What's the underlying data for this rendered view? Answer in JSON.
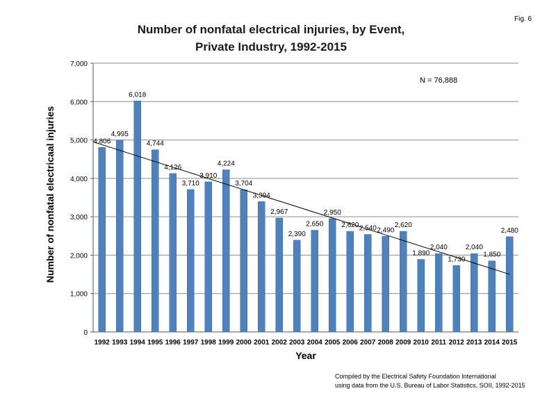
{
  "fig_label": "Fig. 6",
  "annotation": "N = 76,888",
  "credit": {
    "line1": "Compiled by the Electrical Safety Foundation International",
    "line2": "using data from the U.S. Bureau of Labor Statistics, SOII, 1992-2015"
  },
  "colors": {
    "bar": "#4f81bd",
    "bar_edge": "#3a6aa6",
    "grid": "#8c8c8c",
    "trend": "#000000"
  },
  "chart_data": {
    "type": "bar",
    "title_line1": "Number of nonfatal electrical injuries, by Event,",
    "title_line2": "Private Industry, 1992-2015",
    "xlabel": "Year",
    "ylabel": "Number of nonfatal electricaal injuries",
    "categories": [
      "1992",
      "1993",
      "1994",
      "1995",
      "1996",
      "1997",
      "1998",
      "1999",
      "2000",
      "2001",
      "2002",
      "2003",
      "2004",
      "2005",
      "2006",
      "2007",
      "2008",
      "2009",
      "2010",
      "2011",
      "2012",
      "2013",
      "2014",
      "2015"
    ],
    "values": [
      4806,
      4995,
      6018,
      4744,
      4126,
      3710,
      3910,
      4224,
      3704,
      3394,
      2967,
      2390,
      2650,
      2950,
      2620,
      2540,
      2490,
      2620,
      1890,
      2040,
      1730,
      2040,
      1850,
      2480
    ],
    "value_labels": [
      "4,806",
      "4,995",
      "6,018",
      "4,744",
      "4,126",
      "3,710",
      "3,910",
      "4,224",
      "3,704",
      "3,394",
      "2,967",
      "2,390",
      "2,650",
      "2,950",
      "2,620",
      "2,540",
      "2,490",
      "2,620",
      "1,890",
      "2,040",
      "1,730",
      "2,040",
      "1,850",
      "2,480"
    ],
    "ylim": [
      0,
      7000
    ],
    "yticks": [
      0,
      1000,
      2000,
      3000,
      4000,
      5000,
      6000,
      7000
    ],
    "ytick_labels": [
      "0",
      "1,000",
      "2,000",
      "3,000",
      "4,000",
      "5,000",
      "6,000",
      "7,000"
    ],
    "grid": true,
    "trendline": {
      "type": "linear",
      "start": 4950,
      "end": 1500
    }
  }
}
